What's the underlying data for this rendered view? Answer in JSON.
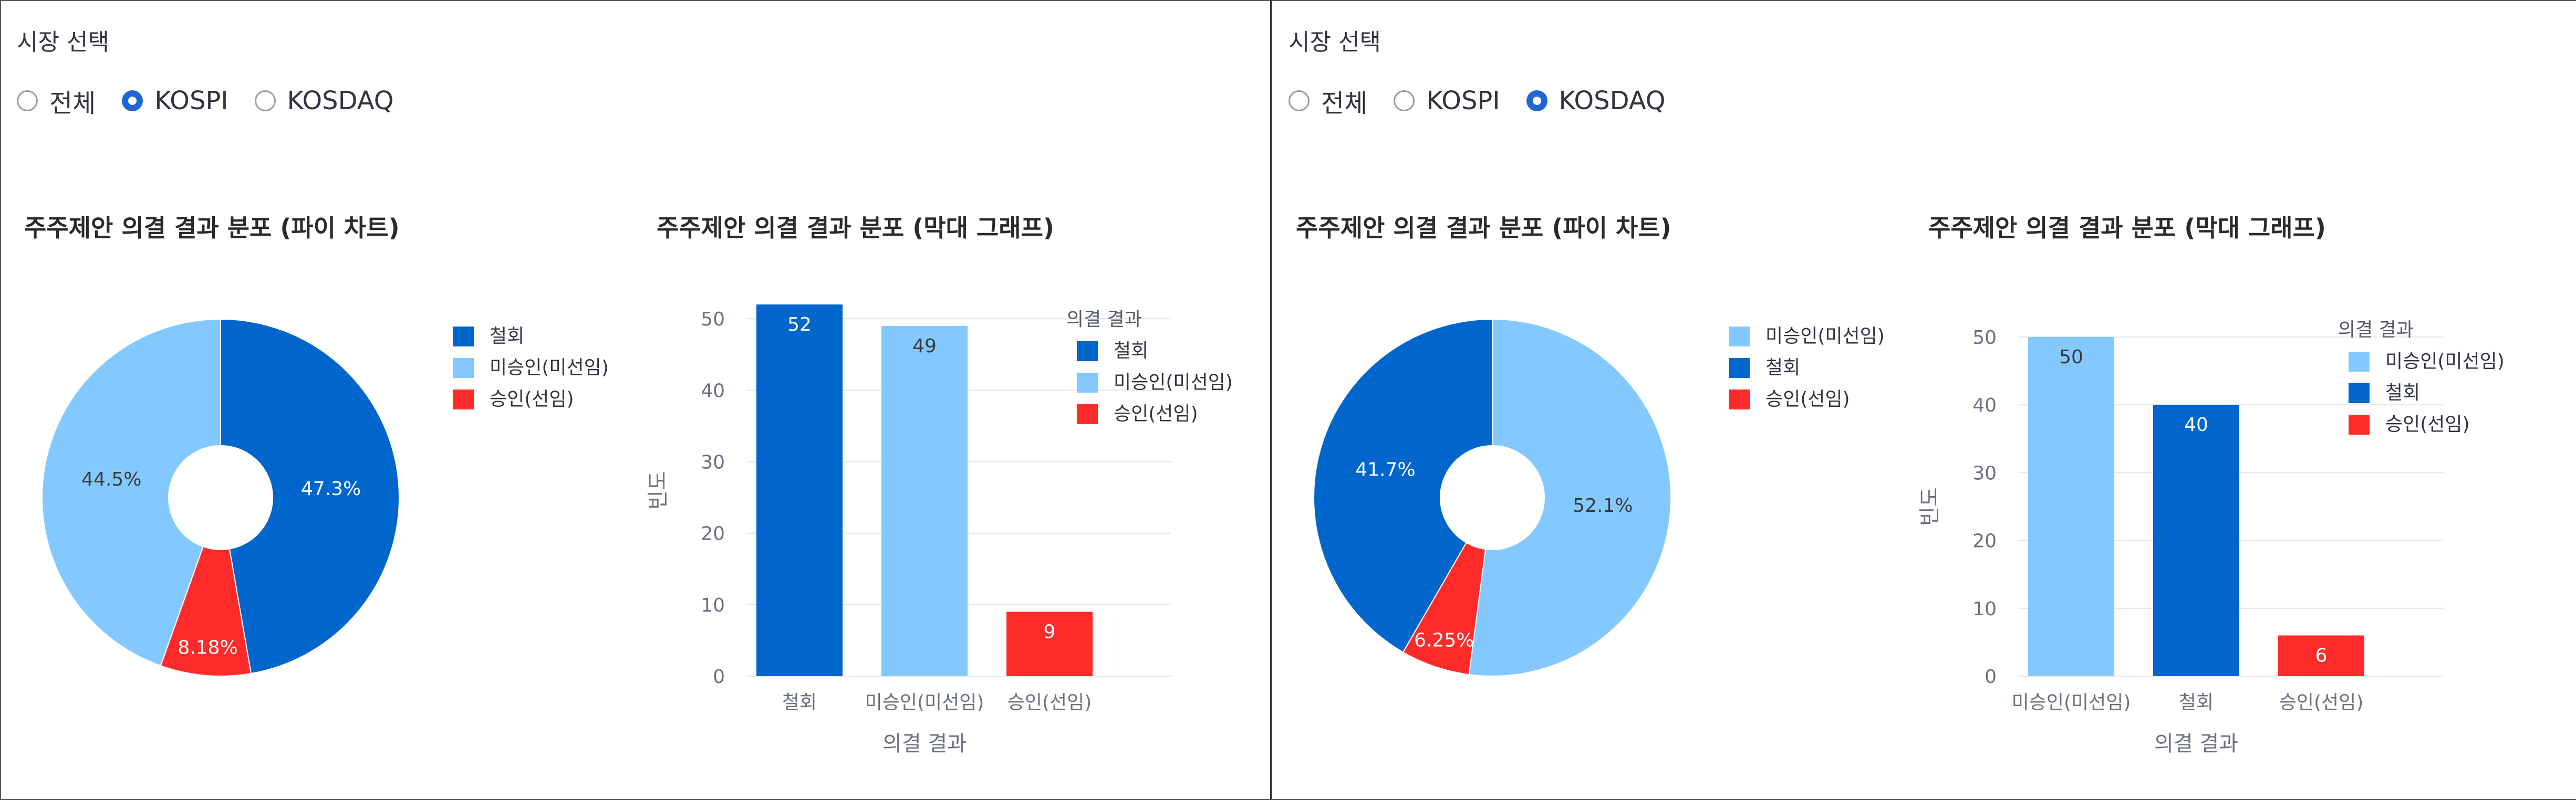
{
  "panels": [
    {
      "market_select_label": "시장 선택",
      "radio_options": [
        {
          "label": "전체",
          "checked": false
        },
        {
          "label": "KOSPI",
          "checked": true
        },
        {
          "label": "KOSDAQ",
          "checked": false
        }
      ],
      "pie_title": "주주제안 의결 결과 분포 (파이 차트)",
      "bar_title": "주주제안 의결 결과 분포 (막대 그래프)"
    },
    {
      "market_select_label": "시장 선택",
      "radio_options": [
        {
          "label": "전체",
          "checked": false
        },
        {
          "label": "KOSPI",
          "checked": false
        },
        {
          "label": "KOSDAQ",
          "checked": true
        }
      ],
      "pie_title": "주주제안 의결 결과 분포 (파이 차트)",
      "bar_title": "주주제안 의결 결과 분포 (막대 그래프)"
    }
  ],
  "colors": {
    "철회": "#0066cc",
    "미승인(미선임)": "#83c9ff",
    "승인(선임)": "#ff2b2b"
  },
  "chart_data": [
    {
      "type": "pie",
      "title": "주주제안 의결 결과 분포 (파이 차트)",
      "hole": true,
      "slices": [
        {
          "label": "철회",
          "value": 52,
          "percent_label": "47.3%"
        },
        {
          "label": "승인(선임)",
          "value": 9,
          "percent_label": "8.18%"
        },
        {
          "label": "미승인(미선임)",
          "value": 49,
          "percent_label": "44.5%"
        }
      ],
      "legend": [
        "철회",
        "미승인(미선임)",
        "승인(선임)"
      ],
      "legend_position": "right"
    },
    {
      "type": "bar",
      "title": "주주제안 의결 결과 분포 (막대 그래프)",
      "categories": [
        "철회",
        "미승인(미선임)",
        "승인(선임)"
      ],
      "values": [
        52,
        49,
        9
      ],
      "xlabel": "의결 결과",
      "ylabel": "빈도",
      "ylim": [
        0,
        52
      ],
      "yticks": [
        0,
        10,
        20,
        30,
        40,
        50
      ],
      "legend_title": "의결 결과",
      "legend": [
        "철회",
        "미승인(미선임)",
        "승인(선임)"
      ],
      "legend_position": "right",
      "grid": true
    },
    {
      "type": "pie",
      "title": "주주제안 의결 결과 분포 (파이 차트)",
      "hole": true,
      "slices": [
        {
          "label": "미승인(미선임)",
          "value": 50,
          "percent_label": "52.1%"
        },
        {
          "label": "승인(선임)",
          "value": 6,
          "percent_label": "6.25%"
        },
        {
          "label": "철회",
          "value": 40,
          "percent_label": "41.7%"
        }
      ],
      "legend": [
        "미승인(미선임)",
        "철회",
        "승인(선임)"
      ],
      "legend_position": "right"
    },
    {
      "type": "bar",
      "title": "주주제안 의결 결과 분포 (막대 그래프)",
      "categories": [
        "미승인(미선임)",
        "철회",
        "승인(선임)"
      ],
      "values": [
        50,
        40,
        6
      ],
      "xlabel": "의결 결과",
      "ylabel": "빈도",
      "ylim": [
        0,
        50
      ],
      "yticks": [
        0,
        10,
        20,
        30,
        40,
        50
      ],
      "legend_title": "의결 결과",
      "legend": [
        "미승인(미선임)",
        "철회",
        "승인(선임)"
      ],
      "legend_position": "right",
      "grid": true
    }
  ]
}
